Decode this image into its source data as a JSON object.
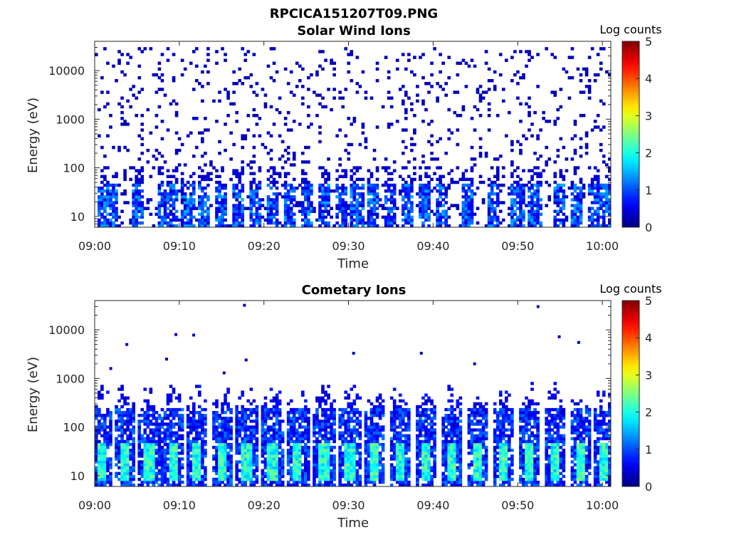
{
  "figure_title": "RPCICA151207T09.PNG",
  "chart_data": [
    {
      "type": "heatmap",
      "title": "Solar Wind Ions",
      "xlabel": "Time",
      "ylabel": "Energy (eV)",
      "x_ticks": [
        "09:00",
        "09:10",
        "09:20",
        "09:30",
        "09:40",
        "09:50",
        "10:00"
      ],
      "x_range": [
        "09:00",
        "10:01"
      ],
      "y_scale": "log",
      "y_ticks": [
        10,
        100,
        1000,
        10000
      ],
      "y_tick_labels": [
        "10",
        "100",
        "1000",
        "10000"
      ],
      "y_range": [
        6,
        40000
      ],
      "colorbar": {
        "label": "Log counts",
        "min": 0,
        "max": 5,
        "ticks": [
          "0",
          "1",
          "2",
          "3",
          "4",
          "5"
        ],
        "colormap": "jet"
      },
      "features": {
        "sparse_background_level": 0.3,
        "sparse_energy_range_eV": [
          50,
          30000
        ],
        "low_energy_band_eV": [
          6,
          45
        ],
        "low_energy_peak_level": 1.5,
        "bursts_min_after_0900": [
          1,
          2,
          5,
          8,
          9,
          11,
          13,
          15,
          17,
          19,
          21,
          23,
          25,
          27,
          29,
          31,
          33,
          35,
          37,
          39,
          41,
          44,
          47,
          50,
          52,
          55,
          57,
          59,
          60.5
        ]
      }
    },
    {
      "type": "heatmap",
      "title": "Cometary Ions",
      "xlabel": "Time",
      "ylabel": "Energy (eV)",
      "x_ticks": [
        "09:00",
        "09:10",
        "09:20",
        "09:30",
        "09:40",
        "09:50",
        "10:00"
      ],
      "x_range": [
        "09:00",
        "10:01"
      ],
      "y_scale": "log",
      "y_ticks": [
        10,
        100,
        1000,
        10000
      ],
      "y_tick_labels": [
        "10",
        "100",
        "1000",
        "10000"
      ],
      "y_range": [
        6,
        40000
      ],
      "colorbar": {
        "label": "Log counts",
        "min": 0,
        "max": 5,
        "ticks": [
          "0",
          "1",
          "2",
          "3",
          "4",
          "5"
        ],
        "colormap": "jet"
      },
      "features": {
        "band_energy_range_eV": [
          6,
          700
        ],
        "peak_energy_range_eV": [
          8,
          45
        ],
        "peak_level": 2.4,
        "band_level": 1.0,
        "pulse_period_min": 3.2,
        "pulse_centres_min_after_0900": [
          0.8,
          3.5,
          6.4,
          9.2,
          12.1,
          15.0,
          18.0,
          21.0,
          24.0,
          27.1,
          30.2,
          33.1,
          36.1,
          39.1,
          42.2,
          45.3,
          48.3,
          51.4,
          54.4,
          57.4,
          60.2
        ],
        "isolated_high_energy_points": [
          {
            "t_min": 3.8,
            "e_eV": 5000
          },
          {
            "t_min": 8.5,
            "e_eV": 2500
          },
          {
            "t_min": 9.6,
            "e_eV": 8000
          },
          {
            "t_min": 11.7,
            "e_eV": 7800
          },
          {
            "t_min": 17.7,
            "e_eV": 32000
          },
          {
            "t_min": 17.9,
            "e_eV": 2400
          },
          {
            "t_min": 30.6,
            "e_eV": 3300
          },
          {
            "t_min": 38.6,
            "e_eV": 3300
          },
          {
            "t_min": 44.9,
            "e_eV": 2000
          },
          {
            "t_min": 52.4,
            "e_eV": 30000
          },
          {
            "t_min": 54.9,
            "e_eV": 7200
          },
          {
            "t_min": 57.2,
            "e_eV": 5500
          },
          {
            "t_min": 1.9,
            "e_eV": 1600
          },
          {
            "t_min": 15.3,
            "e_eV": 1300
          }
        ]
      }
    }
  ]
}
